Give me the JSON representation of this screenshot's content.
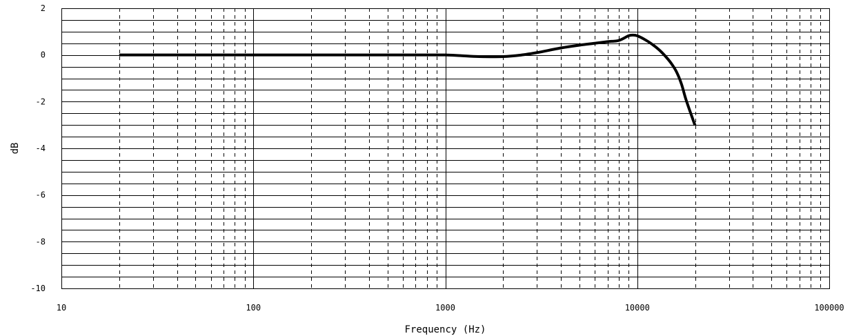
{
  "chart_data": {
    "type": "line",
    "xlabel": "Frequency (Hz)",
    "ylabel": "dB",
    "x_scale": "log",
    "xlim": [
      10,
      100000
    ],
    "ylim": [
      -10,
      2
    ],
    "x_ticks": [
      10,
      100,
      1000,
      10000,
      100000
    ],
    "x_tick_labels": [
      "10",
      "100",
      "1000",
      "10000",
      "100000"
    ],
    "y_ticks": [
      2,
      0,
      -2,
      -4,
      -6,
      -8,
      -10
    ],
    "y_tick_labels": [
      "2",
      "0",
      "-2",
      "-4",
      "-6",
      "-8",
      "-10"
    ],
    "grid": true,
    "line_color": "#000000",
    "series": [
      {
        "x": [
          20,
          100,
          500,
          800,
          1000,
          1200,
          1500,
          2000,
          2500,
          3000,
          4000,
          5000,
          6000,
          7000,
          8000,
          9000,
          9500,
          10000,
          11000,
          12000,
          13000,
          14000,
          15000,
          16000,
          17000,
          18000,
          20000
        ],
        "y": [
          0,
          0,
          0,
          0,
          0,
          -0.03,
          -0.07,
          -0.07,
          0,
          0.1,
          0.3,
          0.42,
          0.5,
          0.57,
          0.62,
          0.82,
          0.85,
          0.82,
          0.65,
          0.45,
          0.22,
          -0.05,
          -0.35,
          -0.72,
          -1.25,
          -1.95,
          -3.02
        ]
      }
    ]
  }
}
